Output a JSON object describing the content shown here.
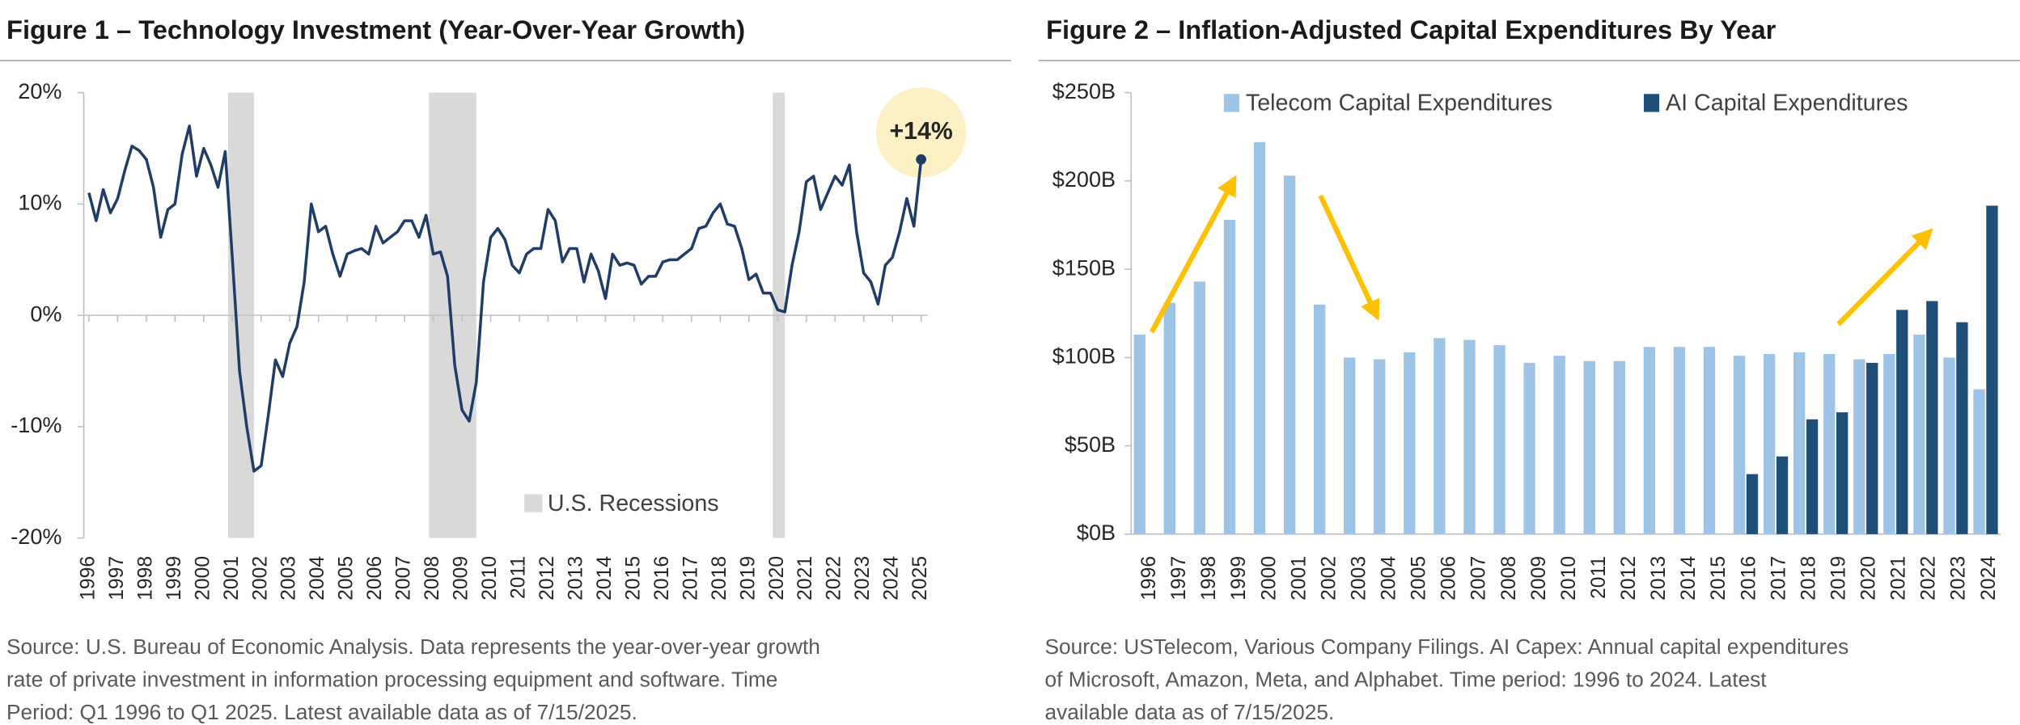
{
  "chart_data": [
    {
      "type": "line",
      "title": "Figure 1 – Technology Investment (Year-Over-Year Growth)",
      "color": "#1f3d66",
      "x": [
        1996,
        1996.25,
        1996.5,
        1996.75,
        1997,
        1997.25,
        1997.5,
        1997.75,
        1998,
        1998.25,
        1998.5,
        1998.75,
        1999,
        1999.25,
        1999.5,
        1999.75,
        2000,
        2000.25,
        2000.5,
        2000.75,
        2001,
        2001.25,
        2001.5,
        2001.75,
        2002,
        2002.25,
        2002.5,
        2002.75,
        2003,
        2003.25,
        2003.5,
        2003.75,
        2004,
        2004.25,
        2004.5,
        2004.75,
        2005,
        2005.25,
        2005.5,
        2005.75,
        2006,
        2006.25,
        2006.5,
        2006.75,
        2007,
        2007.25,
        2007.5,
        2007.75,
        2008,
        2008.25,
        2008.5,
        2008.75,
        2009,
        2009.25,
        2009.5,
        2009.75,
        2010,
        2010.25,
        2010.5,
        2010.75,
        2011,
        2011.25,
        2011.5,
        2011.75,
        2012,
        2012.25,
        2012.5,
        2012.75,
        2013,
        2013.25,
        2013.5,
        2013.75,
        2014,
        2014.25,
        2014.5,
        2014.75,
        2015,
        2015.25,
        2015.5,
        2015.75,
        2016,
        2016.25,
        2016.5,
        2016.75,
        2017,
        2017.25,
        2017.5,
        2017.75,
        2018,
        2018.25,
        2018.5,
        2018.75,
        2019,
        2019.25,
        2019.5,
        2019.75,
        2020,
        2020.25,
        2020.5,
        2020.75,
        2021,
        2021.25,
        2021.5,
        2021.75,
        2022,
        2022.25,
        2022.5,
        2022.75,
        2023,
        2023.25,
        2023.5,
        2023.75,
        2024,
        2024.25,
        2024.5,
        2024.75,
        2025
      ],
      "values": [
        11,
        8.5,
        11.3,
        9.2,
        10.5,
        13,
        15.2,
        14.8,
        14,
        11.5,
        7,
        9.5,
        10,
        14.5,
        17,
        12.5,
        15,
        13.5,
        11.5,
        14.7,
        5,
        -5,
        -10,
        -14,
        -13.5,
        -9,
        -4,
        -5.5,
        -2.5,
        -1,
        3,
        10,
        7.5,
        8,
        5.5,
        3.5,
        5.5,
        5.8,
        6,
        5.5,
        8,
        6.5,
        7,
        7.5,
        8.5,
        8.5,
        7,
        9,
        5.5,
        5.7,
        3.5,
        -4.5,
        -8.5,
        -9.5,
        -6,
        3,
        7,
        7.8,
        6.8,
        4.5,
        3.8,
        5.5,
        6,
        6,
        9.5,
        8.5,
        4.8,
        6,
        6,
        3,
        5.5,
        4,
        1.5,
        5.5,
        4.5,
        4.7,
        4.5,
        2.8,
        3.5,
        3.5,
        4.8,
        5,
        5,
        5.5,
        6,
        7.8,
        8,
        9.2,
        10,
        8.2,
        8,
        6,
        3.2,
        3.7,
        2,
        2,
        0.5,
        0.3,
        4.5,
        7.5,
        12,
        12.5,
        9.5,
        11,
        12.5,
        11.7,
        13.5,
        7.5,
        3.8,
        3,
        1,
        4.5,
        5.2,
        7.5,
        10.5,
        8,
        14
      ],
      "xlim": [
        1996,
        2025
      ],
      "xticks": [
        1996,
        1997,
        1998,
        1999,
        2000,
        2001,
        2002,
        2003,
        2004,
        2005,
        2006,
        2007,
        2008,
        2009,
        2010,
        2011,
        2012,
        2013,
        2014,
        2015,
        2016,
        2017,
        2018,
        2019,
        2020,
        2021,
        2022,
        2023,
        2024,
        2025
      ],
      "ylim": [
        -20,
        20
      ],
      "yticks": [
        {
          "value": -20,
          "label": "-20%"
        },
        {
          "value": -10,
          "label": "-10%"
        },
        {
          "value": 0,
          "label": "0%"
        },
        {
          "value": 10,
          "label": "10%"
        },
        {
          "value": 20,
          "label": "20%"
        }
      ],
      "recessions": [
        {
          "start": 2000.85,
          "end": 2001.75
        },
        {
          "start": 2007.85,
          "end": 2009.5
        },
        {
          "start": 2019.83,
          "end": 2020.25
        }
      ],
      "recession_label": "U.S. Recessions",
      "recession_color": "#d9d9d9",
      "annotation": "+14%",
      "source": [
        "Source: U.S. Bureau of Economic Analysis. Data represents the year-over-year growth",
        "rate of private investment in information processing equipment and software. Time",
        "Period: Q1 1996 to Q1 2025. Latest available data as of 7/15/2025."
      ]
    },
    {
      "type": "bar",
      "title": "Figure 2 – Inflation-Adjusted Capital Expenditures By Year",
      "categories": [
        "1996",
        "1997",
        "1998",
        "1999",
        "2000",
        "2001",
        "2002",
        "2003",
        "2004",
        "2005",
        "2006",
        "2007",
        "2008",
        "2009",
        "2010",
        "2011",
        "2012",
        "2013",
        "2014",
        "2015",
        "2016",
        "2017",
        "2018",
        "2019",
        "2020",
        "2021",
        "2022",
        "2023",
        "2024"
      ],
      "series": [
        {
          "name": "Telecom Capital Expenditures",
          "color": "#9dc3e6",
          "values": [
            113,
            131,
            143,
            178,
            222,
            203,
            130,
            100,
            99,
            103,
            111,
            110,
            107,
            97,
            101,
            98,
            98,
            106,
            106,
            106,
            101,
            102,
            103,
            102,
            99,
            102,
            113,
            100,
            82
          ]
        },
        {
          "name": "AI Capital Expenditures",
          "color": "#1f4e79",
          "values": [
            null,
            null,
            null,
            null,
            null,
            null,
            null,
            null,
            null,
            null,
            null,
            null,
            null,
            null,
            null,
            null,
            null,
            null,
            null,
            null,
            34,
            44,
            65,
            69,
            97,
            127,
            132,
            120,
            186
          ]
        }
      ],
      "ylim": [
        0,
        250
      ],
      "yticks": [
        {
          "value": 0,
          "label": "$0B"
        },
        {
          "value": 50,
          "label": "$50B"
        },
        {
          "value": 100,
          "label": "$100B"
        },
        {
          "value": 150,
          "label": "$150B"
        },
        {
          "value": 200,
          "label": "$200B"
        },
        {
          "value": 250,
          "label": "$250B"
        }
      ],
      "source": [
        "Source: USTelecom, Various Company Filings. AI Capex: Annual capital expenditures",
        "of Microsoft, Amazon, Meta, and Alphabet. Time period: 1996 to 2024. Latest",
        "available data as of 7/15/2025."
      ]
    }
  ]
}
